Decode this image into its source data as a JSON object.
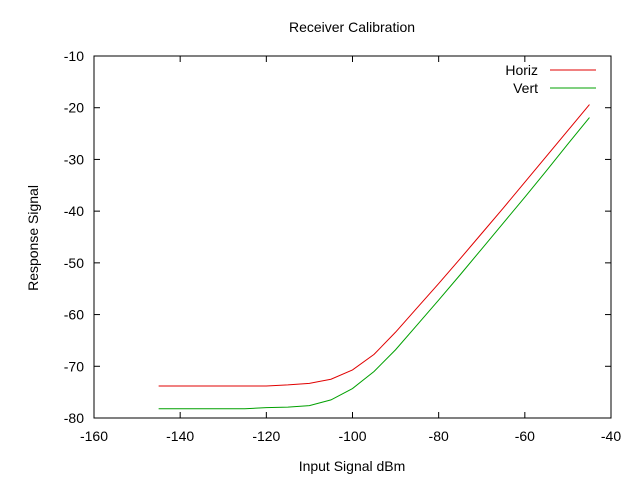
{
  "chart_data": {
    "type": "line",
    "title": "Receiver Calibration",
    "xlabel": "Input Signal dBm",
    "ylabel": "Response Signal",
    "xlim": [
      -160,
      -40
    ],
    "ylim": [
      -80,
      -10
    ],
    "xticks": [
      -160,
      -140,
      -120,
      -100,
      -80,
      -60,
      -40
    ],
    "yticks": [
      -80,
      -70,
      -60,
      -50,
      -40,
      -30,
      -20,
      -10
    ],
    "grid": false,
    "legend_position": "top-right",
    "series": [
      {
        "name": "Horiz",
        "color": "#e00000",
        "x": [
          -145,
          -140,
          -135,
          -130,
          -125,
          -120,
          -115,
          -110,
          -105,
          -100,
          -95,
          -90,
          -85,
          -80,
          -75,
          -70,
          -65,
          -60,
          -55,
          -50,
          -45
        ],
        "y": [
          -73.8,
          -73.8,
          -73.8,
          -73.8,
          -73.8,
          -73.8,
          -73.6,
          -73.3,
          -72.5,
          -70.7,
          -67.7,
          -63.4,
          -58.7,
          -54.0,
          -49.2,
          -44.3,
          -39.4,
          -34.4,
          -29.4,
          -24.4,
          -19.4
        ]
      },
      {
        "name": "Vert",
        "color": "#00a000",
        "x": [
          -145,
          -140,
          -135,
          -130,
          -125,
          -120,
          -115,
          -110,
          -105,
          -100,
          -95,
          -90,
          -85,
          -80,
          -75,
          -70,
          -65,
          -60,
          -55,
          -50,
          -45
        ],
        "y": [
          -78.2,
          -78.2,
          -78.2,
          -78.2,
          -78.2,
          -78.0,
          -77.9,
          -77.6,
          -76.5,
          -74.3,
          -71.0,
          -66.8,
          -62.0,
          -57.2,
          -52.3,
          -47.3,
          -42.3,
          -37.3,
          -32.2,
          -27.0,
          -21.9
        ]
      }
    ]
  }
}
